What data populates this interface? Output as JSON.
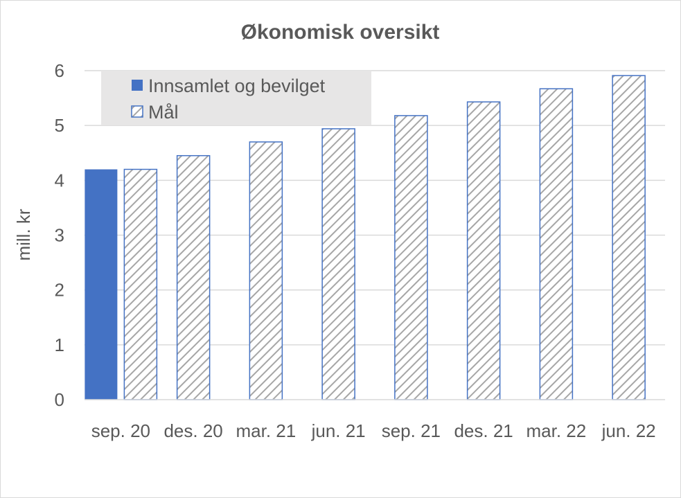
{
  "chart_data": {
    "type": "bar",
    "title": "Økonomisk oversikt",
    "ylabel": "mill. kr",
    "xlabel": "",
    "ylim": [
      0,
      6
    ],
    "yticks": [
      "0",
      "1",
      "2",
      "3",
      "4",
      "5",
      "6"
    ],
    "grid": true,
    "legend_position": "top-left",
    "categories": [
      "sep. 20",
      "des. 20",
      "mar. 21",
      "jun. 21",
      "sep. 21",
      "des. 21",
      "mar. 22",
      "jun. 22"
    ],
    "series": [
      {
        "name": "Innsamlet og bevilget",
        "color": "#4472c4",
        "pattern": "solid",
        "values": [
          4.2,
          null,
          null,
          null,
          null,
          null,
          null,
          null
        ]
      },
      {
        "name": "Mål",
        "color": "#4472c4",
        "pattern": "diagonal-hatch",
        "values": [
          4.2,
          4.45,
          4.7,
          4.94,
          5.18,
          5.43,
          5.67,
          5.91
        ]
      }
    ]
  }
}
